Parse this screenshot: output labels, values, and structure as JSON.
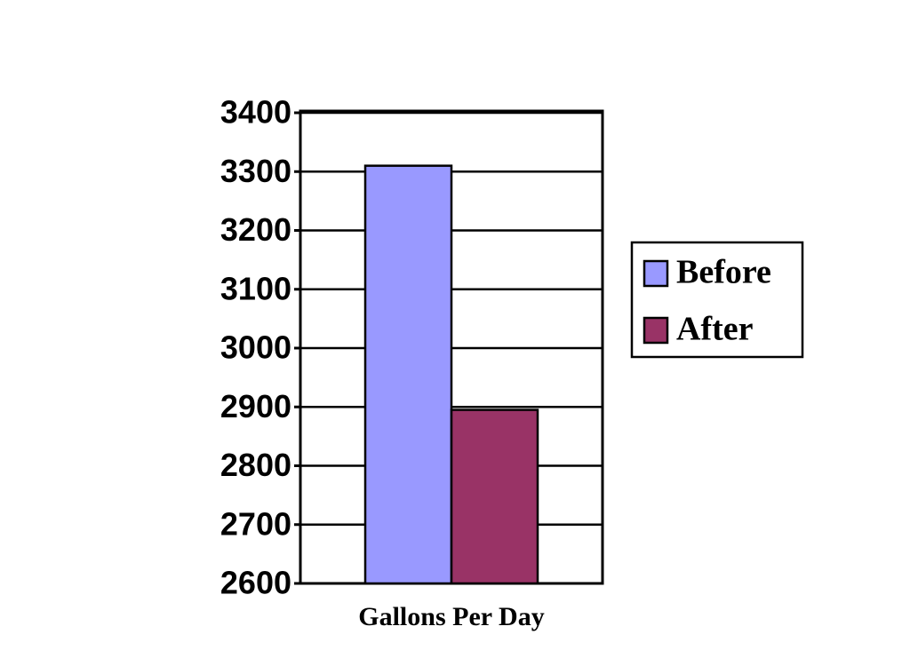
{
  "chart_data": {
    "type": "bar",
    "categories": [
      "Gallons Per Day"
    ],
    "series": [
      {
        "name": "Before",
        "color": "#9999ff",
        "values": [
          3310
        ]
      },
      {
        "name": "After",
        "color": "#993366",
        "values": [
          2895
        ]
      }
    ],
    "ylim": [
      2600,
      3400
    ],
    "yticks": [
      2600,
      2700,
      2800,
      2900,
      3000,
      3100,
      3200,
      3300,
      3400
    ],
    "grid": true,
    "legend": "right"
  }
}
